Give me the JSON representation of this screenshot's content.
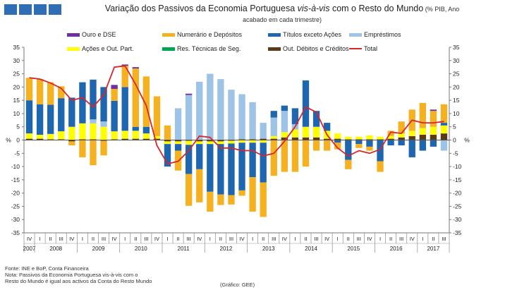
{
  "header": {
    "title_pre": "Variação dos Passivos da Economia Portuguesa ",
    "title_em": "vis-à-vis",
    "title_post": " com o Resto do Mundo",
    "unit_line1": " (% PIB, Ano",
    "unit_line2": "acabado em cada trimestre)"
  },
  "legend": [
    {
      "label": "Ouro e DSE",
      "color": "#7030a0",
      "kind": "bar"
    },
    {
      "label": "Numerário e Depósitos",
      "color": "#f5b120",
      "kind": "bar"
    },
    {
      "label": "Títulos exceto Ações",
      "color": "#1f66b0",
      "kind": "bar"
    },
    {
      "label": "Empréstimos",
      "color": "#9dc3e6",
      "kind": "bar"
    },
    {
      "label": "Ações e Out. Part.",
      "color": "#ffff00",
      "kind": "bar"
    },
    {
      "label": "Res. Técnicas de Seg.",
      "color": "#00a550",
      "kind": "bar"
    },
    {
      "label": "Out. Débitos e Créditos",
      "color": "#5b3a1a",
      "kind": "bar"
    },
    {
      "label": "Total",
      "color": "#d9262a",
      "kind": "line"
    }
  ],
  "footer": {
    "source": "Fonte: INE e BoP, Conta Financeira",
    "note1": "Nota: Passivos da Economia Portuguesa vis-à-vis com o",
    "note2": "Resto do Mundo é igual aos activos da Conta do Resto Mundo",
    "credit": "(Gráfico: GEE)"
  },
  "chart_data": {
    "type": "bar",
    "stacked": true,
    "ylim": [
      -35,
      35
    ],
    "yticks": [
      -35,
      -30,
      -25,
      -20,
      -15,
      -10,
      -5,
      0,
      5,
      10,
      15,
      20,
      25,
      30,
      35
    ],
    "ylabel_left": "%",
    "ylabel_right": "%",
    "grid": false,
    "categories": [
      "2007 IV",
      "2008 I",
      "2008 II",
      "2008 III",
      "2008 IV",
      "2009 I",
      "2009 II",
      "2009 III",
      "2009 IV",
      "2010 I",
      "2010 II",
      "2010 III",
      "2010 IV",
      "2011 I",
      "2011 II",
      "2011 III",
      "2011 IV",
      "2012 I",
      "2012 II",
      "2012 III",
      "2012 IV",
      "2013 I",
      "2013 II",
      "2013 III",
      "2013 IV",
      "2014 I",
      "2014 II",
      "2014 III",
      "2014 IV",
      "2015 I",
      "2015 II",
      "2015 III",
      "2015 IV",
      "2016 I",
      "2016 II",
      "2016 III",
      "2016 IV",
      "2017 I",
      "2017 II",
      "2017 III"
    ],
    "quarter_labels": [
      "IV",
      "I",
      "II",
      "III",
      "IV",
      "I",
      "II",
      "III",
      "IV",
      "I",
      "II",
      "III",
      "IV",
      "I",
      "II",
      "III",
      "IV",
      "I",
      "II",
      "III",
      "IV",
      "I",
      "II",
      "III",
      "IV",
      "I",
      "II",
      "III",
      "IV",
      "I",
      "II",
      "III",
      "IV",
      "I",
      "II",
      "III",
      "IV",
      "I",
      "II",
      "III"
    ],
    "year_groups": [
      {
        "label": "2007",
        "start": 0,
        "count": 1
      },
      {
        "label": "2008",
        "start": 1,
        "count": 4
      },
      {
        "label": "2009",
        "start": 5,
        "count": 4
      },
      {
        "label": "2010",
        "start": 9,
        "count": 4
      },
      {
        "label": "2011",
        "start": 13,
        "count": 4
      },
      {
        "label": "2012",
        "start": 17,
        "count": 4
      },
      {
        "label": "2013",
        "start": 21,
        "count": 4
      },
      {
        "label": "2014",
        "start": 25,
        "count": 4
      },
      {
        "label": "2015",
        "start": 29,
        "count": 4
      },
      {
        "label": "2016",
        "start": 33,
        "count": 4
      },
      {
        "label": "2017",
        "start": 37,
        "count": 3
      }
    ],
    "series": [
      {
        "name": "Out. Débitos e Créditos",
        "values": [
          0.5,
          0.5,
          0.3,
          0.3,
          -0.5,
          0.3,
          0.3,
          -0.3,
          0.3,
          0.5,
          0.5,
          0.5,
          0.5,
          -0.5,
          -0.5,
          -0.3,
          -0.5,
          -0.5,
          -0.5,
          -0.3,
          0.3,
          0.3,
          0.5,
          0.5,
          1,
          1,
          1,
          1,
          0.5,
          0.5,
          0.3,
          0.3,
          0.3,
          0.3,
          0.5,
          1,
          1.5,
          2,
          2,
          2.5
        ]
      },
      {
        "name": "Res. Técnicas de Seg.",
        "values": [
          0,
          0,
          0,
          0,
          0,
          0,
          0,
          0,
          0,
          0,
          0,
          0,
          0,
          0,
          0,
          0,
          0,
          0,
          0,
          0,
          0,
          0,
          0,
          0,
          0,
          0,
          0,
          0,
          0,
          0,
          0,
          0,
          0,
          0,
          0,
          0,
          0,
          0,
          0,
          0
        ]
      },
      {
        "name": "Ações e Out. Part.",
        "values": [
          2,
          1.5,
          2,
          3,
          5,
          6,
          6,
          5,
          3,
          3,
          3,
          2,
          1,
          -1,
          -1,
          -1.5,
          -1,
          -1,
          -1,
          -1,
          -1,
          -1,
          -1,
          1,
          2,
          3,
          4,
          4,
          3,
          2,
          1,
          1,
          1.5,
          1,
          1,
          1.5,
          2,
          2.5,
          3,
          3
        ]
      },
      {
        "name": "Empréstimos",
        "values": [
          0,
          0,
          0,
          0,
          0,
          0,
          1.5,
          2,
          0,
          0,
          0,
          0,
          0,
          0,
          12,
          17,
          22,
          25,
          23,
          19,
          17,
          14,
          6,
          7,
          8,
          2,
          0,
          0,
          0,
          0,
          0,
          0,
          0,
          0,
          0,
          0,
          0,
          0,
          0,
          -4
        ]
      },
      {
        "name": "Títulos exceto Ações",
        "values": [
          12.5,
          11.5,
          11,
          12.5,
          11,
          15.5,
          15,
          13,
          11.5,
          16.5,
          1.5,
          2.5,
          0,
          -8.5,
          -2.5,
          -11,
          -9.5,
          -18,
          -19,
          -19.5,
          -18,
          -13,
          -15,
          2.5,
          2,
          6,
          17.5,
          6,
          3,
          -1,
          -7.5,
          -1.5,
          -2.5,
          -8,
          -2,
          -2,
          -6.5,
          -4,
          -2.5,
          1
        ]
      },
      {
        "name": "Numerário e Depósitos",
        "values": [
          8.5,
          9.5,
          8.5,
          4.5,
          -1.5,
          -6.5,
          -9.5,
          -5.5,
          4.5,
          8,
          22,
          19,
          15,
          5.5,
          -7.5,
          -12,
          -12.5,
          -7.5,
          -4,
          -3.5,
          -2,
          -13,
          -13,
          -13.5,
          -12,
          -12,
          -10,
          -4,
          -4,
          -2.5,
          -3.5,
          -1.5,
          -1.5,
          -4,
          2,
          4.5,
          8,
          9.5,
          6,
          7
        ]
      },
      {
        "name": "Ouro e DSE",
        "values": [
          0,
          0,
          0,
          0,
          0,
          0,
          0,
          0,
          1.5,
          0.5,
          0.5,
          0,
          0,
          0,
          0,
          0.5,
          0,
          0,
          0,
          0,
          0,
          0,
          0,
          0,
          0,
          0,
          0,
          0,
          0,
          0,
          0,
          0,
          0,
          0,
          0,
          0,
          0,
          0,
          0.5,
          0
        ]
      }
    ],
    "total": [
      23.5,
      23,
      21.5,
      19.5,
      15,
      16,
      12.5,
      17,
      27.5,
      28,
      21,
      13,
      -2,
      -9,
      -8,
      -4,
      1.5,
      1,
      -3,
      -3,
      -4,
      -4,
      -6,
      -5,
      -0.5,
      5,
      12.5,
      10.5,
      2,
      -3,
      -6,
      -4,
      -5,
      -3.5,
      3,
      2.5,
      7.5,
      6.5,
      6.5,
      7
    ]
  }
}
